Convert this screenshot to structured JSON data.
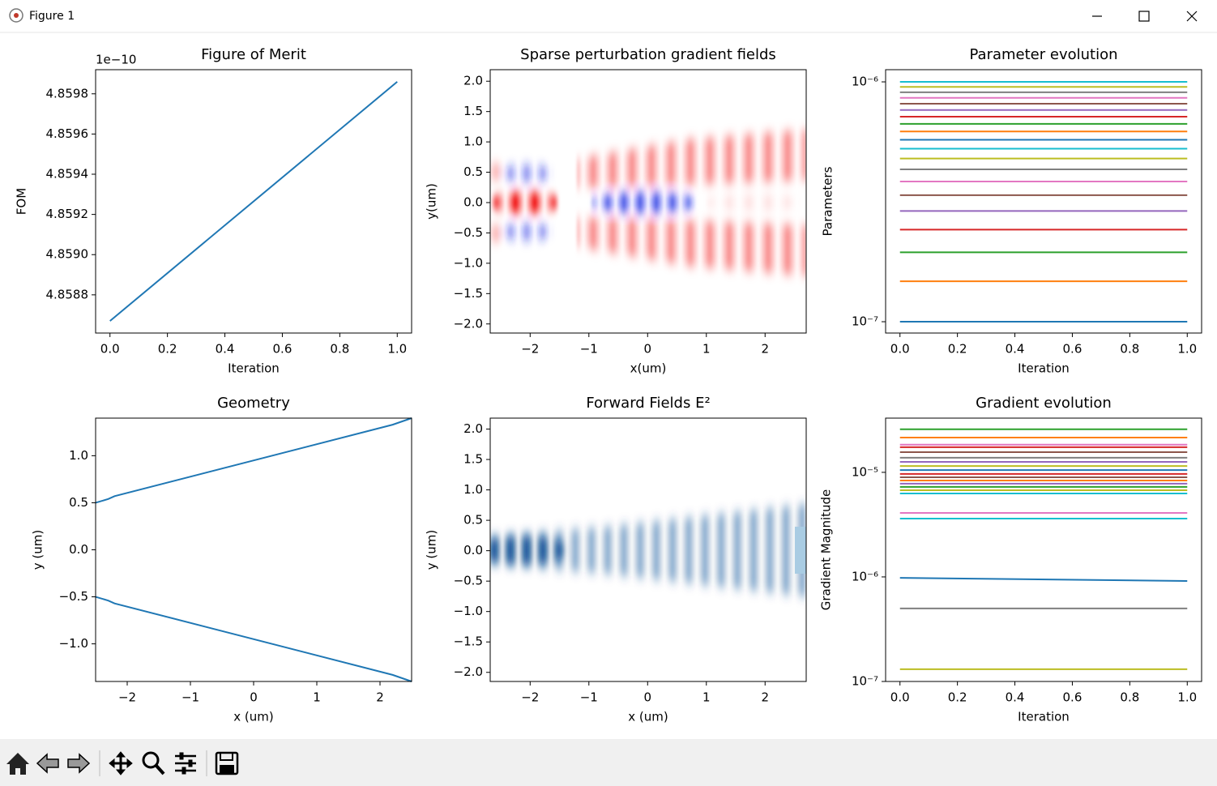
{
  "window": {
    "title": "Figure 1"
  },
  "chart_data": [
    {
      "type": "line",
      "title": "Figure of Merit",
      "xlabel": "Iteration",
      "ylabel": "FOM",
      "y_offset_text": "1e−10",
      "x": [
        0,
        1
      ],
      "series": [
        {
          "color": "#1f77b4",
          "values": [
            4.85867,
            4.85986
          ]
        }
      ],
      "xlim": [
        -0.05,
        1.05
      ],
      "ylim": [
        4.85861,
        4.85992
      ],
      "xticks": [
        {
          "value": 0,
          "label": "0.0"
        },
        0.2,
        0.4,
        0.6,
        0.8,
        {
          "value": 1,
          "label": "1.0"
        }
      ],
      "yticks": [
        4.8588,
        {
          "value": 4.859,
          "label": "4.8590"
        },
        4.8592,
        4.8594,
        4.8596,
        4.8598
      ]
    },
    {
      "type": "heatmap",
      "title": "Sparse perturbation gradient fields",
      "xlabel": "x(um)",
      "ylabel": "y(um)",
      "xlim": [
        -2.68,
        2.7
      ],
      "ylim": [
        -2.15,
        2.19
      ],
      "xticks": [
        {
          "value": -2,
          "label": "−2"
        },
        {
          "value": -1,
          "label": "−1"
        },
        0,
        1,
        2
      ],
      "yticks": [
        {
          "value": -2,
          "label": "−2.0"
        },
        {
          "value": -1.5,
          "label": "−1.5"
        },
        {
          "value": -1,
          "label": "−1.0"
        },
        {
          "value": -0.5,
          "label": "−0.5"
        },
        {
          "value": 0,
          "label": "0.0"
        },
        0.5,
        {
          "value": 1,
          "label": "1.0"
        },
        1.5,
        {
          "value": 2,
          "label": "2.0"
        }
      ]
    },
    {
      "type": "line",
      "title": "Parameter evolution",
      "xlabel": "Iteration",
      "ylabel": "Parameters",
      "log_y": true,
      "x": [
        0,
        1
      ],
      "series": [
        {
          "color": "#1f77b4",
          "values": [
            1e-07,
            1e-07
          ]
        },
        {
          "color": "#ff7f0e",
          "values": [
            1.474e-07,
            1.474e-07
          ]
        },
        {
          "color": "#2ca02c",
          "values": [
            1.947e-07,
            1.947e-07
          ]
        },
        {
          "color": "#d62728",
          "values": [
            2.421e-07,
            2.421e-07
          ]
        },
        {
          "color": "#9467bd",
          "values": [
            2.895e-07,
            2.895e-07
          ]
        },
        {
          "color": "#8c564b",
          "values": [
            3.368e-07,
            3.368e-07
          ]
        },
        {
          "color": "#e377c2",
          "values": [
            3.842e-07,
            3.842e-07
          ]
        },
        {
          "color": "#7f7f7f",
          "values": [
            4.316e-07,
            4.316e-07
          ]
        },
        {
          "color": "#bcbd22",
          "values": [
            4.789e-07,
            4.789e-07
          ]
        },
        {
          "color": "#17becf",
          "values": [
            5.263e-07,
            5.263e-07
          ]
        },
        {
          "color": "#1f77b4",
          "values": [
            5.737e-07,
            5.737e-07
          ]
        },
        {
          "color": "#ff7f0e",
          "values": [
            6.211e-07,
            6.211e-07
          ]
        },
        {
          "color": "#2ca02c",
          "values": [
            6.684e-07,
            6.684e-07
          ]
        },
        {
          "color": "#d62728",
          "values": [
            7.158e-07,
            7.158e-07
          ]
        },
        {
          "color": "#9467bd",
          "values": [
            7.632e-07,
            7.632e-07
          ]
        },
        {
          "color": "#8c564b",
          "values": [
            8.105e-07,
            8.105e-07
          ]
        },
        {
          "color": "#e377c2",
          "values": [
            8.579e-07,
            8.579e-07
          ]
        },
        {
          "color": "#7f7f7f",
          "values": [
            9.053e-07,
            9.053e-07
          ]
        },
        {
          "color": "#bcbd22",
          "values": [
            9.526e-07,
            9.526e-07
          ]
        },
        {
          "color": "#17becf",
          "values": [
            1e-06,
            1e-06
          ]
        }
      ],
      "xlim": [
        -0.05,
        1.05
      ],
      "ylim": [
        8.97e-08,
        1.124e-06
      ],
      "xticks": [
        {
          "value": 0,
          "label": "0.0"
        },
        0.2,
        0.4,
        0.6,
        0.8,
        {
          "value": 1,
          "label": "1.0"
        }
      ],
      "yticks": [
        {
          "value": 1e-07,
          "label": "10⁻⁷"
        },
        {
          "value": 1e-06,
          "label": "10⁻⁶"
        }
      ]
    },
    {
      "type": "line",
      "title": "Geometry",
      "xlabel": "x (um)",
      "ylabel": "y (um)",
      "x": [
        -2.5,
        -2.3,
        -2.2,
        2.2,
        2.5
      ],
      "series": [
        {
          "color": "#1f77b4",
          "values": [
            0.5,
            0.54,
            0.57,
            1.33,
            1.4
          ]
        },
        {
          "color": "#1f77b4",
          "values": [
            -0.5,
            -0.54,
            -0.57,
            -1.33,
            -1.4
          ]
        }
      ],
      "xlim": [
        -2.5,
        2.5
      ],
      "ylim": [
        -1.4,
        1.4
      ],
      "xticks": [
        {
          "value": -2,
          "label": "−2"
        },
        {
          "value": -1,
          "label": "−1"
        },
        0,
        1,
        2
      ],
      "yticks": [
        {
          "value": -1,
          "label": "−1.0"
        },
        {
          "value": -0.5,
          "label": "−0.5"
        },
        {
          "value": 0,
          "label": "0.0"
        },
        0.5,
        {
          "value": 1,
          "label": "1.0"
        }
      ]
    },
    {
      "type": "heatmap",
      "title": "Forward Fields E²",
      "xlabel": "x (um)",
      "ylabel": "y (um)",
      "xlim": [
        -2.68,
        2.7
      ],
      "ylim": [
        -2.15,
        2.18
      ],
      "xticks": [
        {
          "value": -2,
          "label": "−2"
        },
        {
          "value": -1,
          "label": "−1"
        },
        0,
        1,
        2
      ],
      "yticks": [
        {
          "value": -2,
          "label": "−2.0"
        },
        {
          "value": -1.5,
          "label": "−1.5"
        },
        {
          "value": -1,
          "label": "−1.0"
        },
        {
          "value": -0.5,
          "label": "−0.5"
        },
        {
          "value": 0,
          "label": "0.0"
        },
        0.5,
        {
          "value": 1,
          "label": "1.0"
        },
        1.5,
        {
          "value": 2,
          "label": "2.0"
        }
      ]
    },
    {
      "type": "line",
      "title": "Gradient evolution",
      "xlabel": "Iteration",
      "ylabel": "Gradient Magnitude",
      "log_y": true,
      "x": [
        0,
        1
      ],
      "series": [
        {
          "color": "#2ca02c",
          "values": [
            2.58e-05,
            2.58e-05
          ]
        },
        {
          "color": "#ff7f0e",
          "values": [
            2.15e-05,
            2.15e-05
          ]
        },
        {
          "color": "#e377c2",
          "values": [
            1.84e-05,
            1.84e-05
          ]
        },
        {
          "color": "#d62728",
          "values": [
            1.74e-05,
            1.74e-05
          ]
        },
        {
          "color": "#8c564b",
          "values": [
            1.56e-05,
            1.56e-05
          ]
        },
        {
          "color": "#7f7f7f",
          "values": [
            1.38e-05,
            1.38e-05
          ]
        },
        {
          "color": "#9467bd",
          "values": [
            1.26e-05,
            1.26e-05
          ]
        },
        {
          "color": "#bcbd22",
          "values": [
            1.15e-05,
            1.15e-05
          ]
        },
        {
          "color": "#1f77b4",
          "values": [
            1.05e-05,
            1.05e-05
          ]
        },
        {
          "color": "#d62728",
          "values": [
            9.65e-06,
            9.65e-06
          ]
        },
        {
          "color": "#8c564b",
          "values": [
            8.98e-06,
            8.98e-06
          ]
        },
        {
          "color": "#ff7f0e",
          "values": [
            8.36e-06,
            8.36e-06
          ]
        },
        {
          "color": "#9467bd",
          "values": [
            7.79e-06,
            7.79e-06
          ]
        },
        {
          "color": "#2ca02c",
          "values": [
            7.25e-06,
            7.25e-06
          ]
        },
        {
          "color": "#bcbd22",
          "values": [
            6.75e-06,
            6.75e-06
          ]
        },
        {
          "color": "#17becf",
          "values": [
            6.28e-06,
            6.28e-06
          ]
        },
        {
          "color": "#e377c2",
          "values": [
            4.09e-06,
            4.09e-06
          ]
        },
        {
          "color": "#17becf",
          "values": [
            3.61e-06,
            3.61e-06
          ]
        },
        {
          "color": "#1f77b4",
          "values": [
            9.8e-07,
            9.14e-07
          ]
        },
        {
          "color": "#7f7f7f",
          "values": [
            4.99e-07,
            4.99e-07
          ]
        },
        {
          "color": "#bcbd22",
          "values": [
            1.31e-07,
            1.31e-07
          ]
        }
      ],
      "xlim": [
        -0.05,
        1.05
      ],
      "ylim": [
        1e-07,
        3.3e-05
      ],
      "xticks": [
        {
          "value": 0,
          "label": "0.0"
        },
        0.2,
        0.4,
        0.6,
        0.8,
        {
          "value": 1,
          "label": "1.0"
        }
      ],
      "yticks": [
        {
          "value": 1e-07,
          "label": "10⁻⁷"
        },
        {
          "value": 1e-06,
          "label": "10⁻⁶"
        },
        {
          "value": 1e-05,
          "label": "10⁻⁵"
        }
      ]
    }
  ]
}
